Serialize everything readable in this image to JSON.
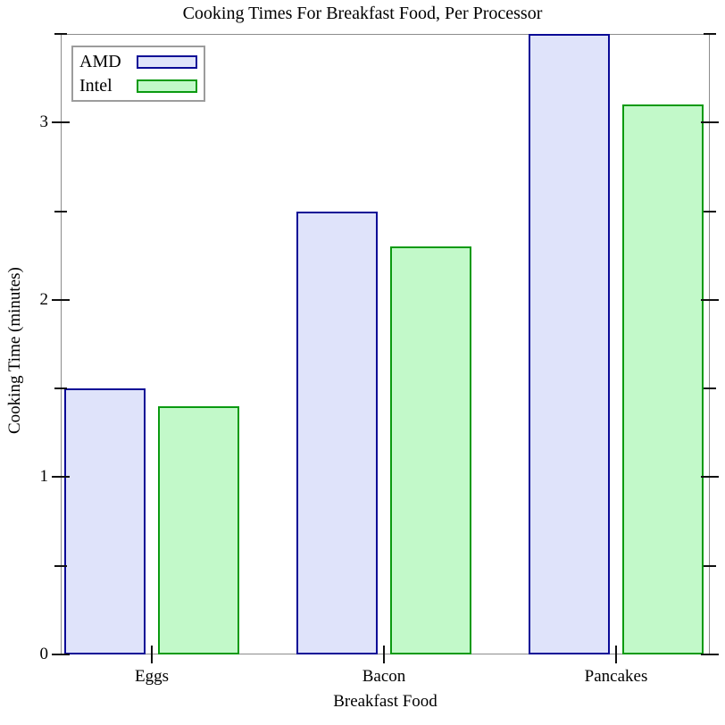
{
  "chart_data": {
    "type": "bar",
    "title": "Cooking Times For Breakfast Food, Per Processor",
    "xlabel": "Breakfast Food",
    "ylabel": "Cooking Time (minutes)",
    "categories": [
      "Eggs",
      "Bacon",
      "Pancakes"
    ],
    "series": [
      {
        "name": "AMD",
        "values": [
          1.5,
          2.5,
          3.5
        ],
        "fill": "#dfe3fa",
        "stroke": "#0a0a96"
      },
      {
        "name": "Intel",
        "values": [
          1.4,
          2.3,
          3.1
        ],
        "fill": "#c2f9c9",
        "stroke": "#0a9a10"
      }
    ],
    "ylim": [
      0,
      3.5
    ],
    "yticks_major": [
      0,
      1,
      2,
      3
    ],
    "yticks_minor": [
      0.5,
      1.5,
      2.5,
      3.5
    ],
    "grid": false,
    "legend_position": "top-left",
    "frame_color": "#8c8c8c",
    "tick_color": "#111111",
    "legend_border_color": "#9c9c9c",
    "text_color": "#000000"
  }
}
